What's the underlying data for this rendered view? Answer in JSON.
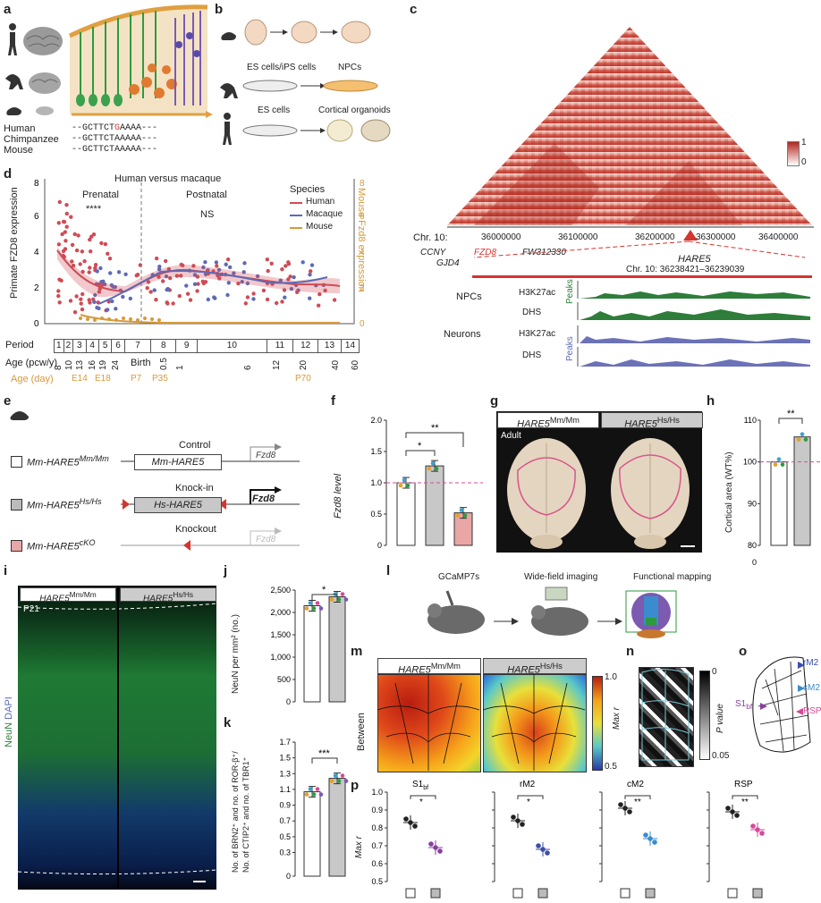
{
  "panel_labels": [
    "a",
    "b",
    "c",
    "d",
    "e",
    "f",
    "g",
    "h",
    "i",
    "j",
    "k",
    "l",
    "m",
    "n",
    "o",
    "p"
  ],
  "a": {
    "species": [
      "Human",
      "Chimpanzee",
      "Mouse"
    ],
    "seq_prefix": "--GCTTCT",
    "seq_human_var": "G",
    "seq_human_suffix": "AAAA---",
    "seq_chimp": "--GCTTCTAAAAA---",
    "seq_mouse": "--GCTTCTAAAAA---"
  },
  "b": {
    "row2_from": "ES cells/iPS cells",
    "row2_to": "NPCs",
    "row3_from": "ES cells",
    "row3_to": "Cortical organoids"
  },
  "c": {
    "scale_max": "1",
    "scale_min": "0",
    "chr": "Chr. 10:",
    "ticks": [
      "36000000",
      "36100000",
      "36200000",
      "36300000",
      "36400000"
    ],
    "genes": [
      "CCNY",
      "GJD4",
      "FZD8",
      "FW312330"
    ],
    "hare": "HARE5",
    "hare_coords": "Chr. 10: 36238421–36239039",
    "npc_label": "NPCs",
    "neuron_label": "Neurons",
    "tracks": [
      "H3K27ac",
      "DHS",
      "H3K27ac",
      "DHS"
    ],
    "peaks": "Peaks"
  },
  "d": {
    "title": "Human versus macaque",
    "prenatal": "Prenatal",
    "postnatal": "Postnatal",
    "stars": "****",
    "ns": "NS",
    "ylabel_left": "Primate FZD8 expression",
    "ylabel_right": "Mouse Fzd8 expression",
    "legend_title": "Species",
    "legend": [
      "Human",
      "Macaque",
      "Mouse"
    ],
    "y_ticks": [
      "0",
      "2",
      "4",
      "6",
      "8"
    ],
    "period_label": "Period",
    "periods": [
      "1",
      "2",
      "3",
      "4",
      "5",
      "6",
      "7",
      "8",
      "9",
      "10",
      "11",
      "12",
      "13",
      "14"
    ],
    "age_label": "Age (pcw/y)",
    "ages": [
      "8",
      "10",
      "13",
      "16",
      "19",
      "24",
      "Birth",
      "0.5",
      "1",
      "6",
      "12",
      "20",
      "40",
      "60"
    ],
    "age_day_label": "Age (day)",
    "age_days": [
      "E14",
      "E18",
      "P7",
      "P35",
      "P70"
    ],
    "colors": {
      "human": "#cf4b55",
      "macaque": "#5c6ab8",
      "mouse": "#d69a3a"
    }
  },
  "e": {
    "rows": [
      "Mm-HARE5",
      "Mm-HARE5",
      "Mm-HARE5"
    ],
    "sups": [
      "Mm/Mm",
      "Hs/Hs",
      "cKO"
    ],
    "captions": [
      "Control",
      "Knock-in",
      "Knockout"
    ],
    "boxes": [
      "Mm-HARE5",
      "Hs-HARE5"
    ],
    "gene": "Fzd8"
  },
  "f": {
    "ylabel": "Fzd8 level",
    "ticks": [
      "0",
      "0.5",
      "1.0",
      "1.5",
      "2.0"
    ],
    "values": [
      1.0,
      1.27,
      0.52
    ],
    "sig": [
      "**",
      "*"
    ]
  },
  "g": {
    "genotypes": [
      "HARE5",
      "HARE5"
    ],
    "sups": [
      "Mm/Mm",
      "Hs/Hs"
    ],
    "adult": "Adult"
  },
  "h": {
    "ylabel": "Cortical area (WT%)",
    "ticks": [
      "0",
      "80",
      "90",
      "100",
      "110"
    ],
    "values": [
      100,
      106
    ],
    "sig": "**"
  },
  "i": {
    "genotypes": [
      "HARE5",
      "HARE5"
    ],
    "sups": [
      "Mm/Mm",
      "Hs/Hs"
    ],
    "age": "P21",
    "stain1": "NeuN",
    "stain2": "DAPI"
  },
  "j": {
    "ylabel": "NeuN per mm² (no.)",
    "ticks": [
      "0",
      "500",
      "1,000",
      "1,500",
      "2,000",
      "2,500"
    ],
    "values": [
      2150,
      2350
    ],
    "sig": "*"
  },
  "k": {
    "ylabel1": "No. of BRN2⁺ and no. of ROR-β⁺/",
    "ylabel2": "No. of CTIP2⁺ and no. of TBR1⁺",
    "ticks": [
      "0",
      "0.3",
      "0.5",
      "0.7",
      "0.9",
      "1.1",
      "1.3",
      "1.5",
      "1.7"
    ],
    "values": [
      1.07,
      1.24
    ],
    "sig": "***"
  },
  "l": {
    "steps": [
      "GCaMP7s",
      "Wide-field imaging",
      "Functional mapping"
    ]
  },
  "m": {
    "genotypes": [
      "HARE5",
      "HARE5"
    ],
    "sups": [
      "Mm/Mm",
      "Hs/Hs"
    ],
    "side": "Between",
    "scale_max": "1.0",
    "scale_min": "0.5",
    "scale_label": "Max r"
  },
  "n": {
    "scale_max": "0",
    "scale_min": "0.05",
    "scale_label": "P value"
  },
  "o": {
    "regions": [
      "rM2",
      "cM2",
      "S1",
      "RSP"
    ],
    "s1_sub": "bf",
    "colors": {
      "rM2": "#3b4ea8",
      "cM2": "#3b8ccf",
      "S1": "#8a3fa0",
      "RSP": "#d64a9a"
    }
  },
  "p": {
    "ylabel": "Max r",
    "ticks": [
      "0.5",
      "0.6",
      "0.7",
      "0.8",
      "0.9",
      "1.0"
    ],
    "panels": [
      {
        "title": "S1",
        "sub": "bf",
        "sig": "*",
        "values": [
          0.83,
          0.69
        ],
        "color": "#8a3fa0"
      },
      {
        "title": "rM2",
        "sub": "",
        "sig": "*",
        "values": [
          0.84,
          0.68
        ],
        "color": "#3b4ea8"
      },
      {
        "title": "cM2",
        "sub": "",
        "sig": "**",
        "values": [
          0.91,
          0.74
        ],
        "color": "#3b8ccf"
      },
      {
        "title": "RSP",
        "sub": "",
        "sig": "**",
        "values": [
          0.89,
          0.79
        ],
        "color": "#d64a9a"
      }
    ]
  }
}
